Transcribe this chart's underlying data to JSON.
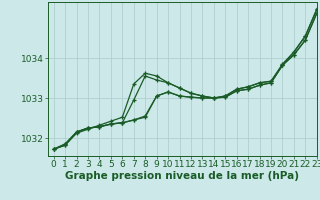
{
  "background_color": "#cce8e8",
  "grid_color": "#aacccc",
  "line_color": "#1a5c28",
  "xlabel": "Graphe pression niveau de la mer (hPa)",
  "xlabel_fontsize": 7.5,
  "xlim": [
    -0.5,
    23
  ],
  "ylim": [
    1031.55,
    1035.4
  ],
  "xticks": [
    0,
    1,
    2,
    3,
    4,
    5,
    6,
    7,
    8,
    9,
    10,
    11,
    12,
    13,
    14,
    15,
    16,
    17,
    18,
    19,
    20,
    21,
    22,
    23
  ],
  "ytick_positions": [
    1032,
    1033,
    1034
  ],
  "ytick_labels": [
    "1032",
    "1033",
    "1034"
  ],
  "series": [
    [
      1031.72,
      1031.82,
      1032.12,
      1032.22,
      1032.32,
      1032.42,
      1032.52,
      1033.35,
      1033.62,
      1033.55,
      1033.38,
      1033.25,
      1033.12,
      1033.05,
      1033.0,
      1033.05,
      1033.22,
      1033.28,
      1033.38,
      1033.42,
      1033.82,
      1034.15,
      1034.55,
      1035.22
    ],
    [
      1031.72,
      1031.82,
      1032.15,
      1032.25,
      1032.28,
      1032.35,
      1032.38,
      1032.45,
      1032.52,
      1033.05,
      1033.15,
      1033.05,
      1033.02,
      1033.0,
      1033.0,
      1033.02,
      1033.18,
      1033.22,
      1033.32,
      1033.38,
      1033.82,
      1034.08,
      1034.45,
      1035.12
    ],
    [
      1031.72,
      1031.85,
      1032.15,
      1032.25,
      1032.28,
      1032.35,
      1032.38,
      1032.95,
      1033.55,
      1033.45,
      1033.38,
      1033.25,
      1033.12,
      1033.05,
      1033.0,
      1033.05,
      1033.22,
      1033.28,
      1033.38,
      1033.42,
      1033.85,
      1034.15,
      1034.55,
      1035.22
    ],
    [
      1031.72,
      1031.85,
      1032.15,
      1032.25,
      1032.28,
      1032.35,
      1032.38,
      1032.45,
      1032.55,
      1033.05,
      1033.15,
      1033.05,
      1033.02,
      1033.0,
      1033.0,
      1033.02,
      1033.18,
      1033.22,
      1033.32,
      1033.38,
      1033.82,
      1034.08,
      1034.45,
      1035.12
    ]
  ],
  "marker": "+",
  "markersize": 3.5,
  "linewidth": 0.9,
  "tick_fontsize": 6.5
}
